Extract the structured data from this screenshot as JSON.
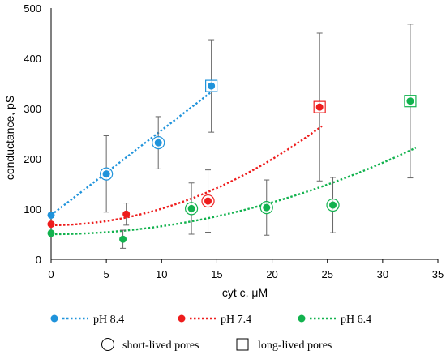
{
  "chart_data": {
    "type": "scatter",
    "xlabel": "cyt c, μM",
    "ylabel": "conductance, pS",
    "xlim": [
      0,
      35
    ],
    "ylim": [
      0,
      500
    ],
    "x_ticks": [
      0,
      5,
      10,
      15,
      20,
      25,
      30,
      35
    ],
    "y_ticks": [
      0,
      100,
      200,
      300,
      400,
      500
    ],
    "grid": false,
    "legend_position": "bottom",
    "series": [
      {
        "name": "pH 8.4",
        "color": "#1f93db",
        "points": [
          {
            "x": 0,
            "y": 88,
            "err": 0,
            "marker": "none"
          },
          {
            "x": 5,
            "y": 170,
            "err": 76,
            "marker": "circle"
          },
          {
            "x": 9.7,
            "y": 232,
            "err": 52,
            "marker": "circle"
          },
          {
            "x": 14.5,
            "y": 345,
            "err": 92,
            "marker": "square"
          }
        ],
        "trend": {
          "type": "linear",
          "x_range": [
            0,
            14.5
          ],
          "y_at_start": 88,
          "y_at_end": 333
        }
      },
      {
        "name": "pH 7.4",
        "color": "#ee1c1c",
        "points": [
          {
            "x": 0,
            "y": 70,
            "err": 0,
            "marker": "none"
          },
          {
            "x": 6.8,
            "y": 90,
            "err": 22,
            "marker": "none"
          },
          {
            "x": 14.2,
            "y": 116,
            "err": 62,
            "marker": "circle"
          },
          {
            "x": 24.3,
            "y": 303,
            "err": 147,
            "marker": "square"
          }
        ],
        "trend": {
          "type": "quadratic",
          "x_range": [
            0,
            24.5
          ],
          "y_at_start": 68,
          "y_at_end": 265
        }
      },
      {
        "name": "pH 6.4",
        "color": "#12b24e",
        "points": [
          {
            "x": 0,
            "y": 52,
            "err": 0,
            "marker": "none"
          },
          {
            "x": 6.5,
            "y": 40,
            "err": 18,
            "marker": "none"
          },
          {
            "x": 12.7,
            "y": 101,
            "err": 51,
            "marker": "circle"
          },
          {
            "x": 19.5,
            "y": 103,
            "err": 55,
            "marker": "circle"
          },
          {
            "x": 25.5,
            "y": 108,
            "err": 55,
            "marker": "circle"
          },
          {
            "x": 32.5,
            "y": 315,
            "err": 153,
            "marker": "square"
          }
        ],
        "trend": {
          "type": "quadratic",
          "x_range": [
            0,
            33
          ],
          "y_at_start": 50,
          "y_at_end": 222
        }
      }
    ],
    "legend": {
      "series_labels": [
        "pH 8.4",
        "pH 7.4",
        "pH 6.4"
      ],
      "marker_labels": [
        "short-lived pores",
        "long-lived pores"
      ]
    }
  }
}
